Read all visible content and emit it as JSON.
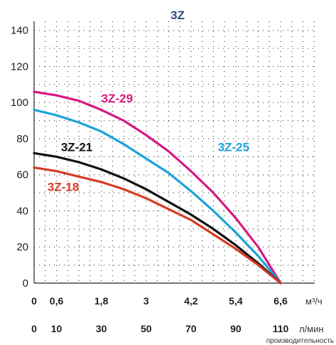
{
  "chart_data": {
    "type": "line",
    "title": "3Z",
    "xlabel": "производительность",
    "x_unit_primary": "м³/ч",
    "x_unit_secondary": "л/мин",
    "x_ticks_primary": [
      "0",
      "0,6",
      "1,8",
      "3",
      "4,2",
      "5,4",
      "6,6"
    ],
    "x_ticks_secondary": [
      "0",
      "10",
      "30",
      "50",
      "70",
      "90",
      "110"
    ],
    "x_tick_values": [
      0,
      10,
      30,
      50,
      70,
      90,
      110
    ],
    "y_ticks": [
      "0",
      "20",
      "40",
      "60",
      "80",
      "100",
      "120",
      "140"
    ],
    "xlim": [
      0,
      110
    ],
    "ylim": [
      0,
      145
    ],
    "grid": true,
    "series": [
      {
        "name": "3Z-29",
        "color": "#d6197f",
        "x": [
          0,
          10,
          20,
          30,
          40,
          50,
          60,
          70,
          80,
          90,
          100,
          110
        ],
        "y": [
          106,
          104,
          101,
          96,
          90,
          82,
          73,
          62,
          50,
          36,
          20,
          0
        ]
      },
      {
        "name": "3Z-25",
        "color": "#1aa3d8",
        "x": [
          0,
          10,
          20,
          30,
          40,
          50,
          60,
          70,
          80,
          90,
          100,
          110
        ],
        "y": [
          96,
          93,
          89,
          84,
          77,
          69,
          61,
          51,
          40,
          28,
          15,
          0
        ]
      },
      {
        "name": "3Z-21",
        "color": "#111111",
        "x": [
          0,
          10,
          20,
          30,
          40,
          50,
          60,
          70,
          80,
          90,
          100,
          110
        ],
        "y": [
          72,
          70,
          67,
          63,
          58,
          52,
          45,
          38,
          30,
          21,
          11,
          0
        ]
      },
      {
        "name": "3Z-18",
        "color": "#d63a24",
        "x": [
          0,
          10,
          20,
          30,
          40,
          50,
          60,
          70,
          80,
          90,
          100,
          110
        ],
        "y": [
          64,
          62,
          59,
          56,
          52,
          47,
          41,
          35,
          27,
          19,
          10,
          0
        ]
      }
    ]
  }
}
